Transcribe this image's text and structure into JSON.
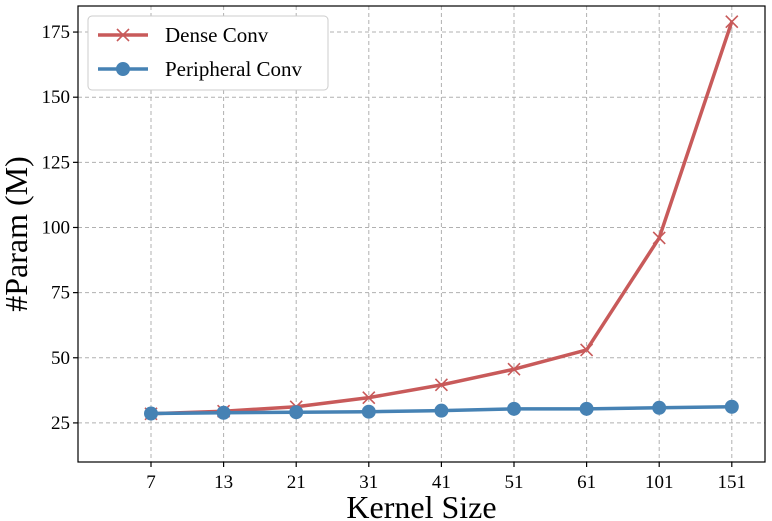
{
  "chart_data": {
    "type": "line",
    "title": "",
    "xlabel": "Kernel Size",
    "ylabel": "#Param (M)",
    "categories": [
      "7",
      "13",
      "21",
      "31",
      "41",
      "51",
      "61",
      "101",
      "151"
    ],
    "ylim": [
      10,
      185
    ],
    "yticks": [
      25,
      50,
      75,
      100,
      125,
      150,
      175
    ],
    "ytick_labels": [
      "25",
      "50",
      "75",
      "100",
      "125",
      "150",
      "175"
    ],
    "grid": true,
    "legend_position": "top-left",
    "series": [
      {
        "name": "Dense Conv",
        "color": "#c85a5a",
        "marker": "x",
        "values": [
          28.5,
          29.5,
          31.2,
          34.7,
          39.6,
          45.6,
          53.0,
          96.0,
          179.0
        ]
      },
      {
        "name": "Peripheral Conv",
        "color": "#4682b4",
        "marker": "circle",
        "values": [
          28.6,
          28.9,
          29.1,
          29.3,
          29.7,
          30.4,
          30.4,
          30.8,
          31.2
        ]
      }
    ]
  }
}
